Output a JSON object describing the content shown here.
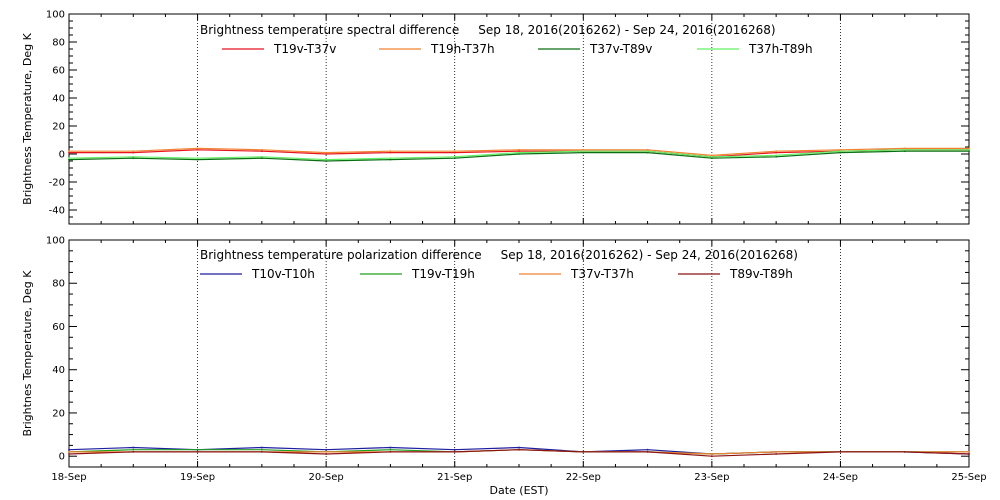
{
  "chart_data": [
    {
      "type": "line",
      "title": "Brightness temperature spectral difference     Sep 18, 2016(2016262) - Sep 24, 2016(2016268)",
      "ylabel": "Brightness Temperature, Deg K",
      "xlabel": "",
      "ylim": [
        -50,
        100
      ],
      "yticks": [
        -40,
        -20,
        0,
        20,
        40,
        60,
        80,
        100
      ],
      "grid": "vertical dotted lines at each day",
      "legend_position": "top",
      "x": [
        "18-Sep",
        "18-Sep 12h",
        "19-Sep",
        "19-Sep 12h",
        "20-Sep",
        "20-Sep 12h",
        "21-Sep",
        "21-Sep 12h",
        "22-Sep",
        "22-Sep 12h",
        "23-Sep",
        "23-Sep 12h",
        "24-Sep",
        "24-Sep 12h",
        "25-Sep"
      ],
      "series": [
        {
          "name": "T19v-T37v",
          "color": "#e8141e",
          "values": [
            1,
            1,
            3,
            2,
            0,
            1,
            1,
            2,
            2,
            2,
            -2,
            1,
            2,
            3,
            3
          ]
        },
        {
          "name": "T19h-T37h",
          "color": "#f08232",
          "values": [
            2,
            2,
            4,
            3,
            1,
            2,
            2,
            3,
            3,
            3,
            -1,
            2,
            3,
            4,
            4
          ]
        },
        {
          "name": "T37v-T89v",
          "color": "#0a6e14",
          "values": [
            -4,
            -3,
            -4,
            -3,
            -5,
            -4,
            -3,
            0,
            1,
            1,
            -3,
            -2,
            1,
            2,
            2
          ]
        },
        {
          "name": "T37h-T89h",
          "color": "#64f064",
          "values": [
            -3,
            -2,
            -3,
            -2,
            -4,
            -3,
            -2,
            1,
            2,
            2,
            -2,
            -1,
            2,
            3,
            3
          ]
        }
      ]
    },
    {
      "type": "line",
      "title": "Brightness temperature polarization difference     Sep 18, 2016(2016262) - Sep 24, 2016(2016268)",
      "ylabel": "Brightnes Temperature, Deg K",
      "xlabel": "Date (EST)",
      "ylim": [
        -5,
        100
      ],
      "yticks": [
        0,
        20,
        40,
        60,
        80,
        100
      ],
      "grid": "vertical dotted lines at each day",
      "legend_position": "top",
      "x": [
        "18-Sep",
        "18-Sep 12h",
        "19-Sep",
        "19-Sep 12h",
        "20-Sep",
        "20-Sep 12h",
        "21-Sep",
        "21-Sep 12h",
        "22-Sep",
        "22-Sep 12h",
        "23-Sep",
        "23-Sep 12h",
        "24-Sep",
        "24-Sep 12h",
        "25-Sep"
      ],
      "series": [
        {
          "name": "T10v-T10h",
          "color": "#1e1ea0",
          "values": [
            3,
            4,
            3,
            4,
            3,
            4,
            3,
            4,
            2,
            3,
            1,
            2,
            2,
            2,
            1
          ]
        },
        {
          "name": "T19v-T19h",
          "color": "#20a020",
          "values": [
            2,
            3,
            3,
            3,
            2,
            3,
            2,
            3,
            2,
            2,
            1,
            2,
            2,
            2,
            2
          ]
        },
        {
          "name": "T37v-T37h",
          "color": "#f08232",
          "values": [
            2,
            2,
            2,
            2,
            2,
            2,
            2,
            3,
            2,
            2,
            1,
            2,
            2,
            2,
            2
          ]
        },
        {
          "name": "T89v-T89h",
          "color": "#8c1414",
          "values": [
            1,
            2,
            2,
            2,
            1,
            2,
            2,
            3,
            2,
            2,
            0,
            1,
            2,
            2,
            1
          ]
        }
      ]
    }
  ],
  "x_tick_labels": [
    "18-Sep",
    "19-Sep",
    "20-Sep",
    "21-Sep",
    "22-Sep",
    "23-Sep",
    "24-Sep",
    "25-Sep"
  ]
}
